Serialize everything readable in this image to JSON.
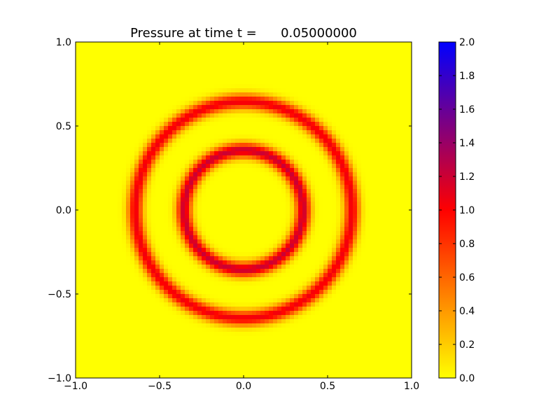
{
  "chart_data": {
    "type": "heatmap",
    "title": "Pressure at time t =      0.05000000",
    "xlabel": "",
    "ylabel": "",
    "xlim": [
      -1.0,
      1.0
    ],
    "ylim": [
      -1.0,
      1.0
    ],
    "x_ticks": [
      "−1.0",
      "−0.5",
      "0.0",
      "0.5",
      "1.0"
    ],
    "y_ticks": [
      "−1.0",
      "−0.5",
      "0.0",
      "0.5",
      "1.0"
    ],
    "x_tick_values": [
      -1.0,
      -0.5,
      0.0,
      0.5,
      1.0
    ],
    "y_tick_values": [
      -1.0,
      -0.5,
      0.0,
      0.5,
      1.0
    ],
    "grid": false,
    "field": {
      "background_value": 0.0,
      "rings": [
        {
          "radius": 0.355,
          "peak": 1.2,
          "width": 0.045
        },
        {
          "radius": 0.645,
          "peak": 1.05,
          "width": 0.045
        }
      ],
      "grid_resolution": 80
    },
    "colorbar": {
      "vmin": 0.0,
      "vmax": 2.0,
      "tick_labels": [
        "0.0",
        "0.2",
        "0.4",
        "0.6",
        "0.8",
        "1.0",
        "1.2",
        "1.4",
        "1.6",
        "1.8",
        "2.0"
      ],
      "tick_values": [
        0.0,
        0.2,
        0.4,
        0.6,
        0.8,
        1.0,
        1.2,
        1.4,
        1.6,
        1.8,
        2.0
      ],
      "colors": [
        "#ffff00",
        "#ff0000",
        "#0000ff"
      ]
    }
  }
}
